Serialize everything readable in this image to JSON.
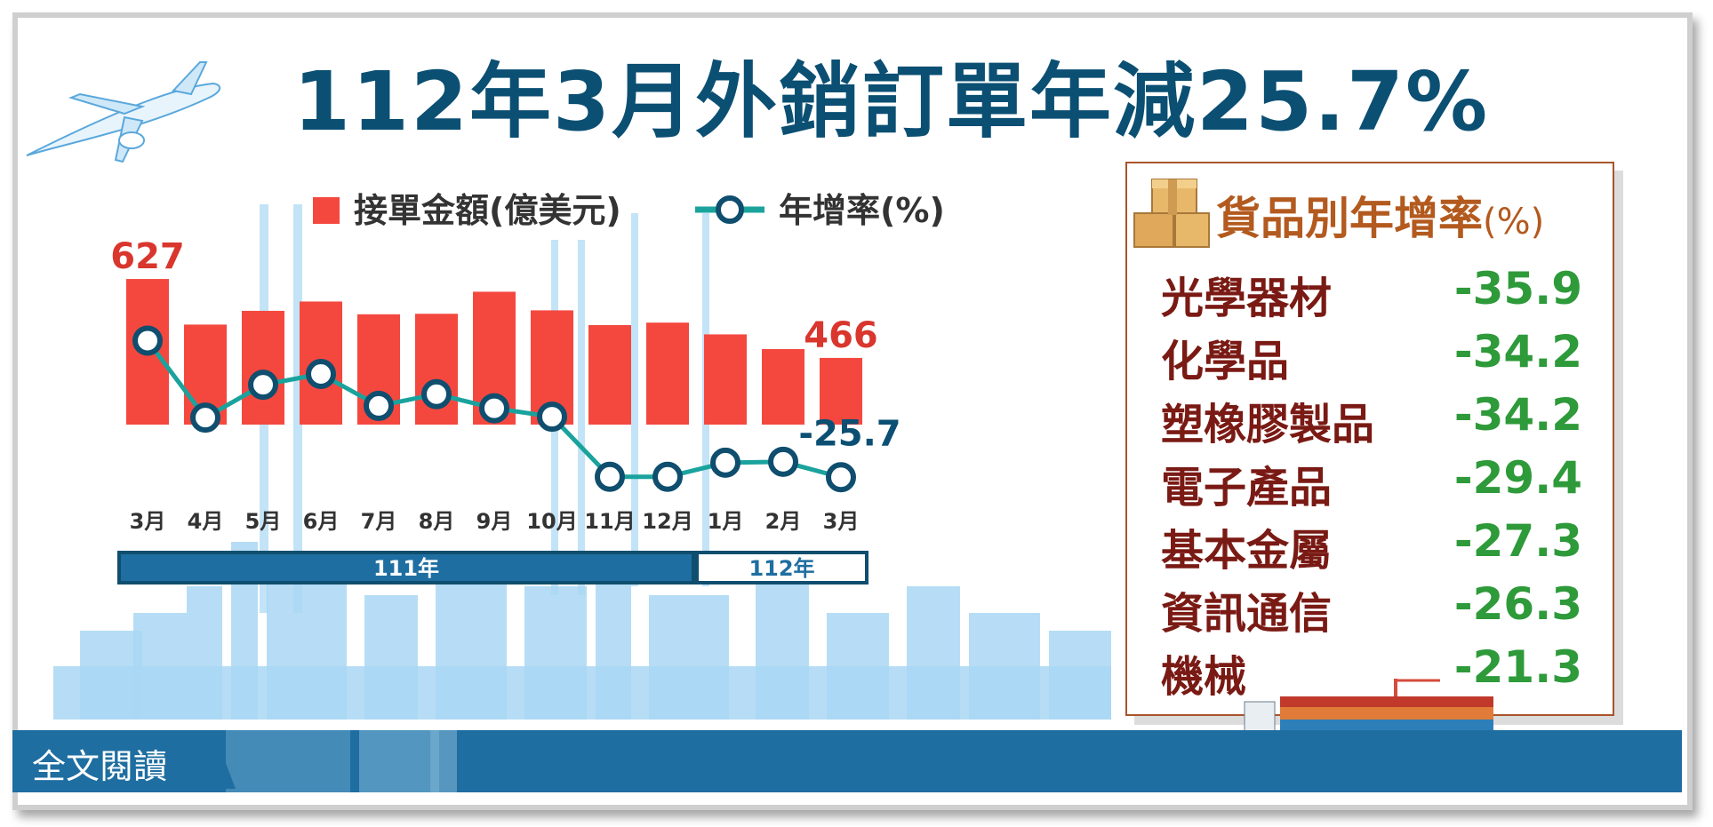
{
  "title": {
    "main": "112年3月外銷訂單年減25.7%"
  },
  "legend": {
    "bar_label": "接單金額(億美元)",
    "line_label": "年增率(%)"
  },
  "chart_data": {
    "type": "bar",
    "categories": [
      "3月",
      "4月",
      "5月",
      "6月",
      "7月",
      "8月",
      "9月",
      "10月",
      "11月",
      "12月",
      "1月",
      "2月",
      "3月"
    ],
    "year_groups": [
      {
        "label": "111年",
        "count": 10
      },
      {
        "label": "112年",
        "count": 3
      }
    ],
    "series": [
      {
        "name": "接單金額(億美元)",
        "type": "bar",
        "color": "#f4483f",
        "values": [
          627,
          534,
          562,
          581,
          555,
          556,
          601,
          563,
          533,
          538,
          514,
          484,
          466
        ]
      },
      {
        "name": "年增率(%)",
        "type": "line",
        "color": "#1aa39d",
        "values": [
          3.4,
          -13.0,
          -6.0,
          -3.7,
          -10.5,
          -8.0,
          -11.0,
          -12.8,
          -25.6,
          -25.6,
          -22.6,
          -22.4,
          -25.7
        ]
      }
    ],
    "bar_labels": [
      {
        "index": 0,
        "text": "627"
      },
      {
        "index": 12,
        "text": "466"
      }
    ],
    "line_labels": [
      {
        "index": 12,
        "text": "-25.7"
      }
    ]
  },
  "panel": {
    "title": "貨品別年增率",
    "unit": "(%)",
    "rows": [
      {
        "name": "光學器材",
        "value": "-35.9"
      },
      {
        "name": "化學品",
        "value": "-34.2"
      },
      {
        "name": "塑橡膠製品",
        "value": "-34.2"
      },
      {
        "name": "電子產品",
        "value": "-29.4"
      },
      {
        "name": "基本金屬",
        "value": "-27.3"
      },
      {
        "name": "資訊通信",
        "value": "-26.3"
      },
      {
        "name": "機械",
        "value": "-21.3"
      }
    ]
  },
  "read_button": {
    "label": "全文閱讀"
  },
  "colors": {
    "title": "#0b4f73",
    "bar": "#f4483f",
    "line": "#1aa39d",
    "panel_title": "#b35a1f",
    "panel_name": "#7a1a14",
    "panel_value": "#2e9a3a",
    "sea": "#1f6ea1",
    "skyline": "#a9d7f3"
  }
}
